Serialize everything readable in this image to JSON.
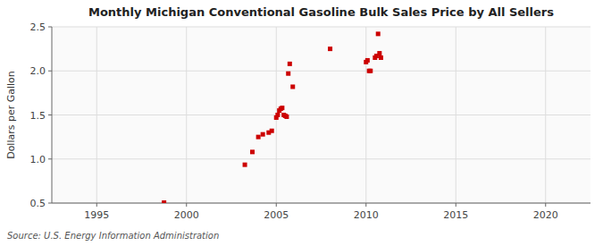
{
  "chart_data": {
    "type": "scatter",
    "title": "Monthly Michigan Conventional Gasoline Bulk Sales Price by All Sellers",
    "y_label": "Dollars per Gallon",
    "annotations": [
      "Source: U.S. Energy Information Administration"
    ],
    "color": "#cc0000",
    "marker": "square",
    "grid": true,
    "xlim": [
      1992.5,
      2022.5
    ],
    "ylim": [
      0.5,
      2.5
    ],
    "xticks": [
      1995,
      2000,
      2005,
      2010,
      2015,
      2020
    ],
    "yticks": [
      0.5,
      {
        "value": 1.0,
        "label": "1.0"
      },
      1.5,
      {
        "value": 2.0,
        "label": "2.0"
      },
      2.5
    ],
    "x": [
      1998.75,
      2003.25,
      2003.67,
      2004.0,
      2004.25,
      2004.58,
      2004.75,
      2005.0,
      2005.08,
      2005.17,
      2005.25,
      2005.33,
      2005.42,
      2005.5,
      2005.58,
      2005.67,
      2005.75,
      2005.92,
      2008.0,
      2010.0,
      2010.08,
      2010.17,
      2010.25,
      2010.5,
      2010.58,
      2010.67,
      2010.75,
      2010.83
    ],
    "values": [
      0.505,
      0.935,
      1.08,
      1.25,
      1.28,
      1.3,
      1.32,
      1.47,
      1.5,
      1.55,
      1.57,
      1.58,
      1.5,
      1.49,
      1.48,
      1.97,
      2.08,
      1.82,
      2.25,
      2.1,
      2.12,
      2.0,
      2.0,
      2.15,
      2.17,
      2.42,
      2.2,
      2.15
    ]
  }
}
